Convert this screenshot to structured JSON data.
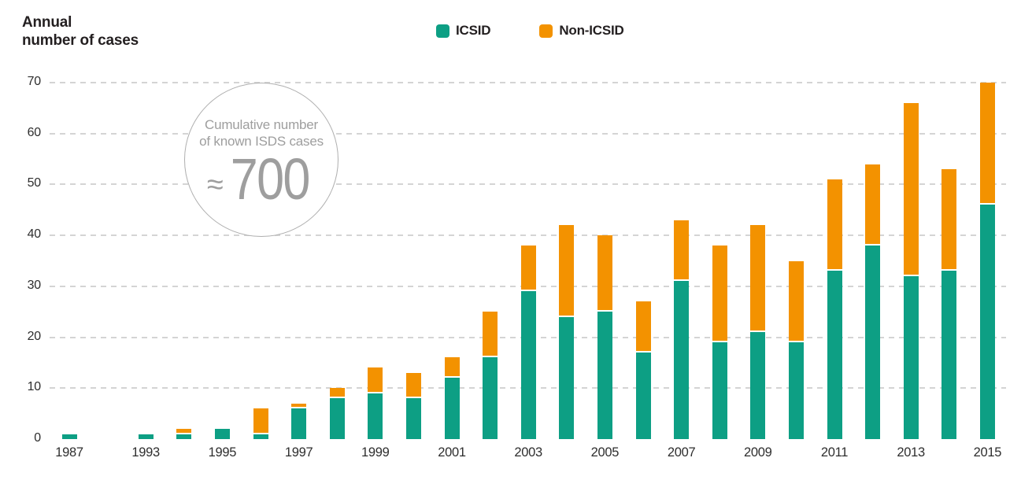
{
  "title": {
    "line1": "Annual",
    "line2": "number of cases"
  },
  "legend": {
    "items": [
      {
        "label": "ICSID",
        "color": "#0d9f84"
      },
      {
        "label": "Non-ICSID",
        "color": "#f39200"
      }
    ]
  },
  "annotation": {
    "line1": "Cumulative number",
    "line2": "of known ISDS cases",
    "approx": "≈",
    "value": "700"
  },
  "colors": {
    "icsid": "#0d9f84",
    "non_icsid": "#f39200",
    "gridline": "#d4d4d4",
    "annotation_text": "#9e9e9e"
  },
  "chart_data": {
    "type": "bar",
    "stacked": true,
    "title": "Annual number of cases",
    "categories": [
      "1987",
      "1993",
      "1994",
      "1995",
      "1996",
      "1997",
      "1998",
      "1999",
      "2000",
      "2001",
      "2002",
      "2003",
      "2004",
      "2005",
      "2006",
      "2007",
      "2008",
      "2009",
      "2010",
      "2011",
      "2012",
      "2013",
      "2014",
      "2015"
    ],
    "series": [
      {
        "name": "ICSID",
        "color": "#0d9f84",
        "values": [
          1,
          1,
          1,
          2,
          1,
          6,
          8,
          9,
          8,
          12,
          16,
          29,
          24,
          25,
          17,
          31,
          19,
          21,
          19,
          33,
          38,
          32,
          33,
          46
        ]
      },
      {
        "name": "Non-ICSID",
        "color": "#f39200",
        "values": [
          0,
          0,
          1,
          0,
          5,
          1,
          2,
          5,
          5,
          4,
          9,
          9,
          18,
          15,
          10,
          12,
          19,
          21,
          16,
          18,
          16,
          34,
          20,
          24
        ]
      }
    ],
    "totals": [
      1,
      1,
      2,
      2,
      6,
      7,
      10,
      14,
      13,
      16,
      25,
      38,
      42,
      40,
      27,
      43,
      38,
      42,
      35,
      51,
      54,
      66,
      53,
      70
    ],
    "x_tick_labels": [
      "1987",
      "1993",
      "1995",
      "1997",
      "1999",
      "2001",
      "2003",
      "2005",
      "2007",
      "2009",
      "2011",
      "2013",
      "2015"
    ],
    "y_ticks": [
      0,
      10,
      20,
      30,
      40,
      50,
      60,
      70
    ],
    "ylim": [
      0,
      70
    ],
    "grid": "horizontal-dashed",
    "legend_position": "top-center",
    "x_axis_note_gap": "one empty slot between 1987 and 1993"
  }
}
